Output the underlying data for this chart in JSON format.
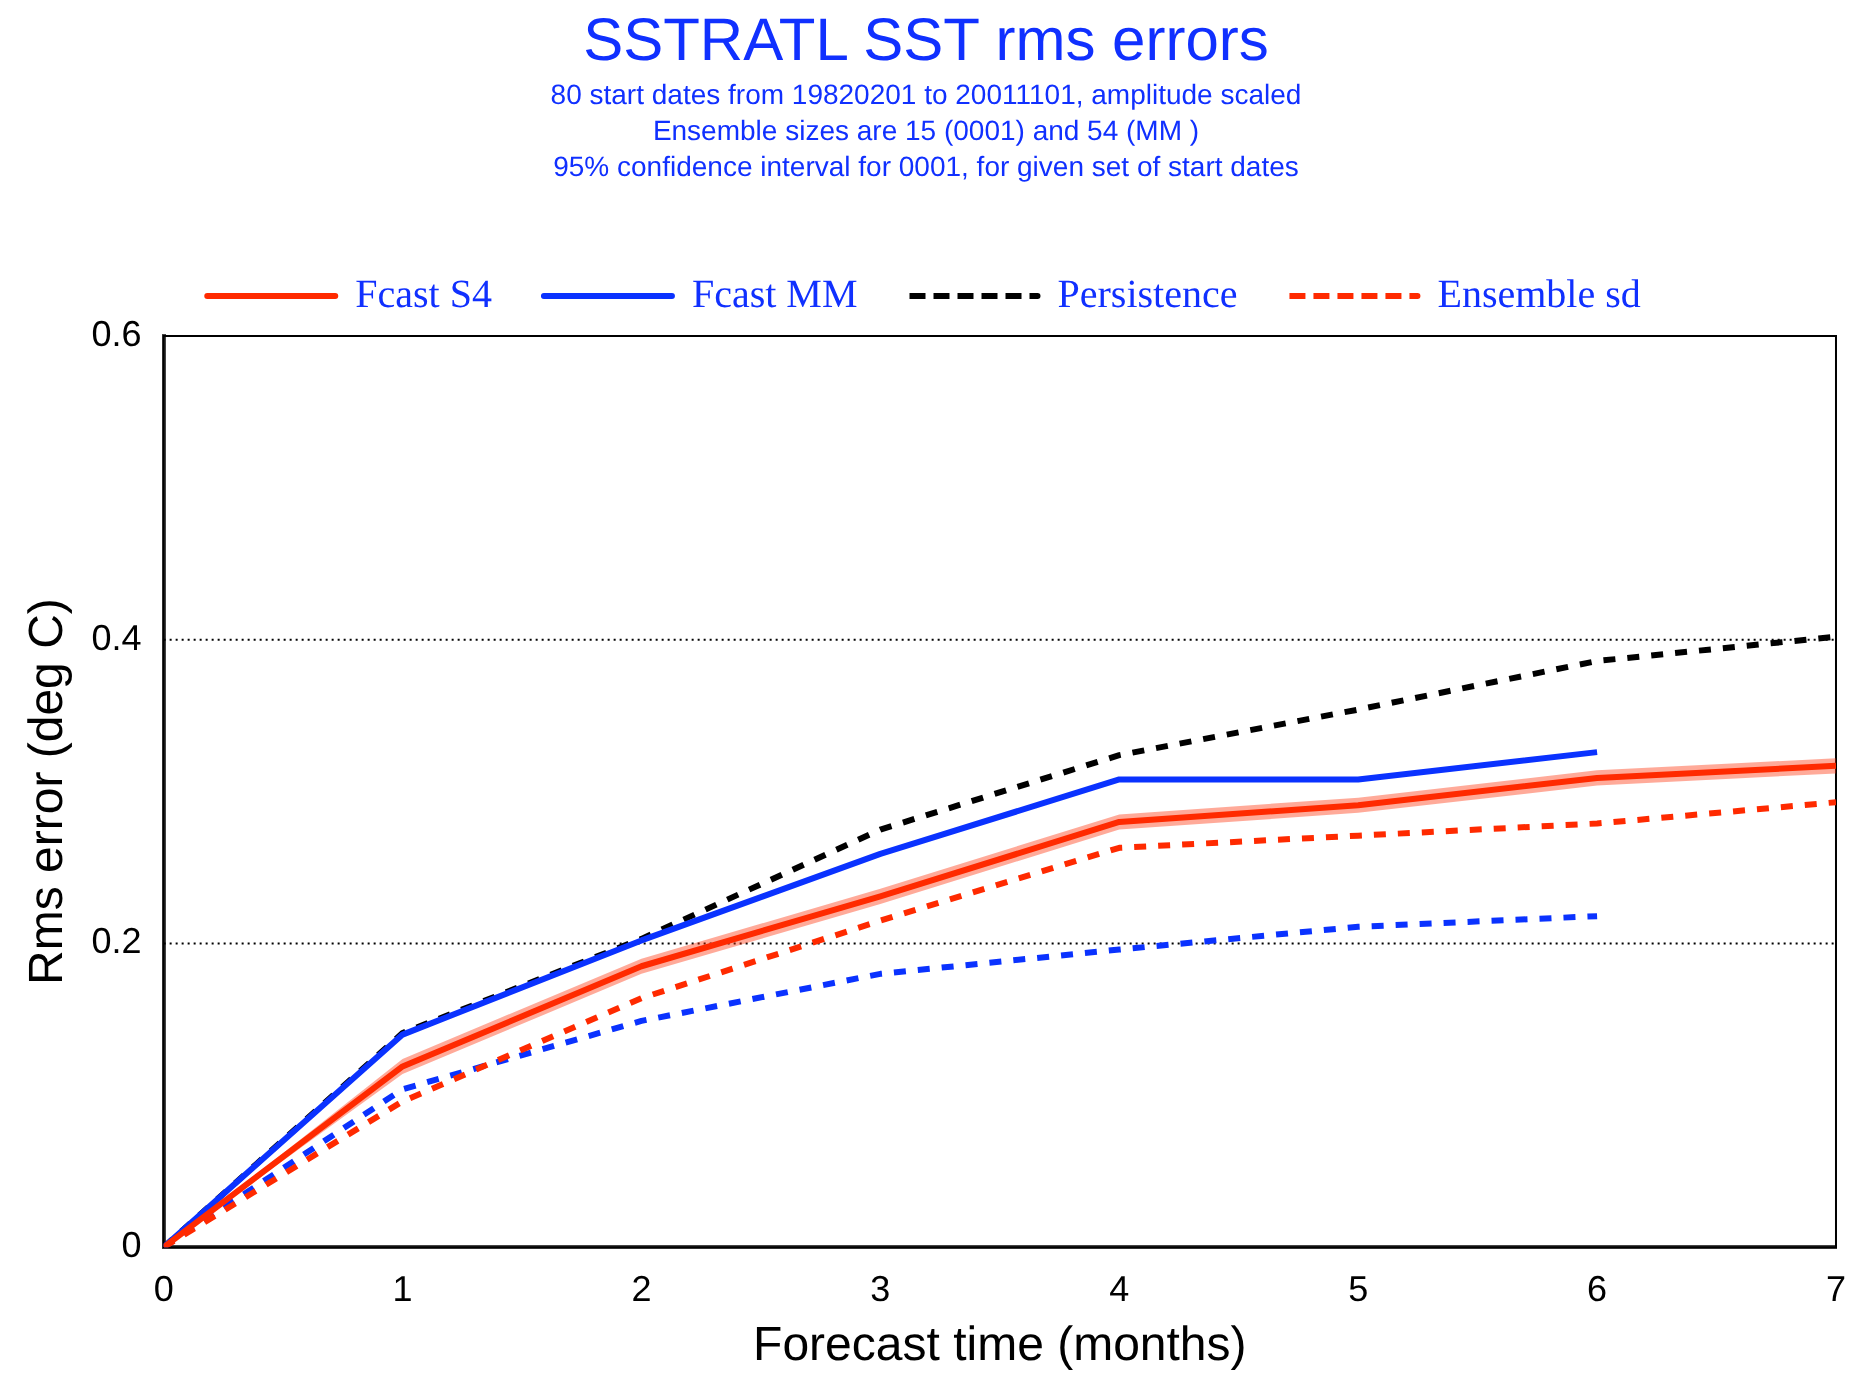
{
  "chart_data": {
    "type": "line",
    "title": "SSTRATL SST rms errors",
    "subtitle": "80 start dates from 19820201 to 20011101, amplitude scaled\nEnsemble sizes are 15 (0001)  and 54 (MM  )\n95% confidence interval for 0001, for given set of start dates",
    "xlabel": "Forecast time (months)",
    "ylabel": "Rms error (deg C)",
    "x": [
      0,
      1,
      2,
      3,
      4,
      5,
      6,
      7
    ],
    "xlim": [
      0,
      7
    ],
    "xticks": [
      0,
      1,
      2,
      3,
      4,
      5,
      6,
      7
    ],
    "ylim": [
      0,
      0.6
    ],
    "yticks": [
      0,
      0.2,
      0.4,
      0.6
    ],
    "grid": "y",
    "legend": "top",
    "marker": "none",
    "series": [
      {
        "name": "Fcast S4",
        "color": "#ff2a00",
        "line_style": "solid",
        "values": [
          0,
          0.119,
          0.185,
          0.231,
          0.28,
          0.291,
          0.309,
          0.317
        ],
        "lower": [
          0,
          0.114,
          0.18,
          0.226,
          0.275,
          0.286,
          0.304,
          0.312
        ],
        "upper": [
          0,
          0.124,
          0.19,
          0.236,
          0.285,
          0.296,
          0.314,
          0.322
        ]
      },
      {
        "name": "Fcast MM",
        "color": "#0a32ff",
        "line_style": "solid",
        "values": [
          0,
          0.14,
          0.202,
          0.259,
          0.308,
          0.308,
          0.326,
          null
        ]
      },
      {
        "name": "Persistence",
        "color": "#000000",
        "line_style": "dashed",
        "values": [
          0,
          0.141,
          0.203,
          0.275,
          0.324,
          0.354,
          0.386,
          0.402
        ]
      },
      {
        "name": "Ensemble sd",
        "color": "#ff2a00",
        "line_style": "dashed",
        "values": [
          0,
          0.096,
          0.164,
          0.215,
          0.263,
          0.271,
          0.279,
          0.293
        ]
      },
      {
        "color": "#0a32ff",
        "line_style": "dashed",
        "values": [
          0,
          0.104,
          0.149,
          0.18,
          0.196,
          0.211,
          0.218,
          null
        ]
      }
    ]
  }
}
